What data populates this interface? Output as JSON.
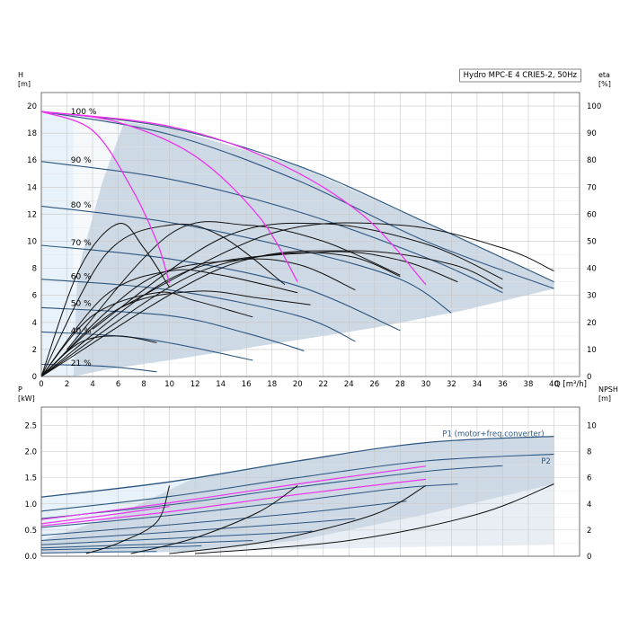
{
  "title": "Hydro MPC-E 4 CRIE5-2, 50Hz",
  "colors": {
    "envelope": "#cdd9e5",
    "light_region": "#e8f2fa",
    "curve_blue": "#2c5680",
    "magenta": "#ee33ee",
    "black": "#111111",
    "grid": "#c8c8c8"
  },
  "chart_data": [
    {
      "type": "line",
      "name": "head",
      "y_left_label": "H",
      "y_left_unit": "[m]",
      "y_right_label": "eta",
      "y_right_unit": "[%]",
      "x_label": "Q [m³/h]",
      "xlim": [
        0,
        42
      ],
      "ylim": [
        0,
        21
      ],
      "ylim_right": [
        0,
        105
      ],
      "x_ticks": [
        0,
        2,
        4,
        6,
        8,
        10,
        12,
        14,
        16,
        18,
        20,
        22,
        24,
        26,
        28,
        30,
        32,
        34,
        36,
        38,
        40
      ],
      "y_ticks": [
        0,
        2,
        4,
        6,
        8,
        10,
        12,
        14,
        16,
        18,
        20
      ],
      "y_right_ticks": [
        0,
        10,
        20,
        30,
        40,
        50,
        60,
        70,
        80,
        90,
        100
      ],
      "grid": true,
      "speed_labels": [
        {
          "text": "100 %",
          "x": 2.3,
          "y": 19.6
        },
        {
          "text": "90 %",
          "x": 2.3,
          "y": 16.0
        },
        {
          "text": "80 %",
          "x": 2.3,
          "y": 12.7
        },
        {
          "text": "70 %",
          "x": 2.3,
          "y": 9.9
        },
        {
          "text": "60 %",
          "x": 2.3,
          "y": 7.4
        },
        {
          "text": "50 %",
          "x": 2.3,
          "y": 5.4
        },
        {
          "text": "40 %",
          "x": 2.3,
          "y": 3.4
        },
        {
          "text": "21 %",
          "x": 2.3,
          "y": 1.0
        }
      ],
      "speed_curves": [
        {
          "speed": 100,
          "points": [
            [
              0,
              19.6
            ],
            [
              10,
              18.4
            ],
            [
              20,
              15.6
            ],
            [
              30,
              11.4
            ],
            [
              40,
              7.0
            ]
          ]
        },
        {
          "speed": 100,
          "points": [
            [
              0,
              19.6
            ],
            [
              10,
              17.9
            ],
            [
              20,
              14.5
            ],
            [
              30,
              10.0
            ],
            [
              40,
              6.5
            ]
          ]
        },
        {
          "speed": 90,
          "points": [
            [
              0,
              15.9
            ],
            [
              10,
              14.6
            ],
            [
              20,
              12.2
            ],
            [
              30,
              8.8
            ],
            [
              36,
              6.2
            ]
          ]
        },
        {
          "speed": 80,
          "points": [
            [
              0,
              12.6
            ],
            [
              10,
              11.4
            ],
            [
              20,
              9.4
            ],
            [
              28,
              7.2
            ],
            [
              32,
              4.7
            ]
          ]
        },
        {
          "speed": 70,
          "points": [
            [
              0,
              9.7
            ],
            [
              10,
              8.7
            ],
            [
              20,
              6.7
            ],
            [
              28,
              3.4
            ]
          ]
        },
        {
          "speed": 60,
          "points": [
            [
              0,
              7.2
            ],
            [
              10,
              6.4
            ],
            [
              20,
              4.5
            ],
            [
              24.5,
              2.6
            ]
          ]
        },
        {
          "speed": 50,
          "points": [
            [
              0,
              5.1
            ],
            [
              10,
              4.5
            ],
            [
              16,
              3.2
            ],
            [
              20.5,
              1.9
            ]
          ]
        },
        {
          "speed": 40,
          "points": [
            [
              0,
              3.3
            ],
            [
              8,
              2.8
            ],
            [
              16.5,
              1.2
            ]
          ]
        },
        {
          "speed": 21,
          "points": [
            [
              0,
              0.9
            ],
            [
              5,
              0.75
            ],
            [
              9,
              0.35
            ]
          ]
        }
      ],
      "magenta_curves": [
        {
          "points": [
            [
              0,
              19.6
            ],
            [
              4,
              18.2
            ],
            [
              7,
              14.0
            ],
            [
              9,
              10.0
            ],
            [
              10,
              6.9
            ]
          ]
        },
        {
          "points": [
            [
              0,
              19.6
            ],
            [
              6,
              18.8
            ],
            [
              12,
              16.3
            ],
            [
              17,
              11.8
            ],
            [
              20,
              7.0
            ]
          ]
        },
        {
          "points": [
            [
              0,
              19.6
            ],
            [
              10,
              18.5
            ],
            [
              18,
              16.0
            ],
            [
              25,
              12.0
            ],
            [
              30,
              6.8
            ]
          ]
        }
      ],
      "efficiency_curves": [
        {
          "points": [
            [
              0,
              0
            ],
            [
              3,
              8.0
            ],
            [
              6,
              11.3
            ],
            [
              8,
              9.5
            ],
            [
              10,
              6.6
            ]
          ]
        },
        {
          "points": [
            [
              0,
              0
            ],
            [
              5,
              9.0
            ],
            [
              10,
              11.2
            ],
            [
              14,
              10.4
            ],
            [
              19,
              6.8
            ]
          ]
        },
        {
          "points": [
            [
              2,
              2.0
            ],
            [
              10,
              10.5
            ],
            [
              16,
              11.2
            ],
            [
              22,
              10.0
            ],
            [
              28,
              7.5
            ]
          ]
        },
        {
          "points": [
            [
              4,
              3.5
            ],
            [
              14,
              10.2
            ],
            [
              22,
              11.3
            ],
            [
              30,
              9.8
            ],
            [
              36,
              7.2
            ]
          ]
        },
        {
          "points": [
            [
              6,
              5.0
            ],
            [
              18,
              10.6
            ],
            [
              28,
              11.2
            ],
            [
              36,
              9.5
            ],
            [
              40,
              7.8
            ]
          ]
        },
        {
          "points": [
            [
              0,
              0
            ],
            [
              4,
              4.5
            ],
            [
              9,
              6.2
            ],
            [
              12,
              5.6
            ],
            [
              16.5,
              4.4
            ]
          ]
        },
        {
          "points": [
            [
              0,
              0
            ],
            [
              6,
              5.0
            ],
            [
              12,
              6.3
            ],
            [
              17,
              5.8
            ],
            [
              21,
              5.3
            ]
          ]
        },
        {
          "points": [
            [
              0,
              0
            ],
            [
              5,
              6.0
            ],
            [
              10,
              7.8
            ],
            [
              14,
              7.5
            ],
            [
              20,
              6.2
            ]
          ]
        },
        {
          "points": [
            [
              0,
              0
            ],
            [
              8,
              7.0
            ],
            [
              15,
              8.6
            ],
            [
              20,
              8.3
            ],
            [
              24.5,
              6.4
            ]
          ]
        },
        {
          "points": [
            [
              0,
              0
            ],
            [
              10,
              7.2
            ],
            [
              18,
              9.0
            ],
            [
              24,
              8.9
            ],
            [
              28,
              7.4
            ]
          ]
        },
        {
          "points": [
            [
              0,
              0
            ],
            [
              12,
              7.6
            ],
            [
              22,
              9.2
            ],
            [
              28,
              8.6
            ],
            [
              32.5,
              7.0
            ]
          ]
        },
        {
          "points": [
            [
              0,
              0
            ],
            [
              14,
              8.0
            ],
            [
              24,
              9.3
            ],
            [
              32,
              8.3
            ],
            [
              36,
              6.5
            ]
          ]
        },
        {
          "points": [
            [
              0,
              0
            ],
            [
              3,
              2.5
            ],
            [
              6,
              3.0
            ],
            [
              9,
              2.5
            ]
          ]
        }
      ]
    },
    {
      "type": "line",
      "name": "power",
      "y_left_label": "P",
      "y_left_unit": "[kW]",
      "y_right_label": "NPSH",
      "y_right_unit": "[m]",
      "xlim": [
        0,
        42
      ],
      "ylim": [
        0,
        2.85
      ],
      "ylim_right": [
        0,
        11.4
      ],
      "y_ticks": [
        0.0,
        0.5,
        1.0,
        1.5,
        2.0,
        2.5
      ],
      "y_tick_labels": [
        "0.0",
        "0.5",
        "1.0",
        "1.5",
        "2.0",
        "2.5"
      ],
      "y_right_ticks": [
        0,
        2,
        4,
        6,
        8,
        10
      ],
      "grid": true,
      "series_labels": [
        {
          "text": "P1 (motor+freq.converter)",
          "x": 31.3,
          "y": 2.34
        },
        {
          "text": "P2",
          "x": 39.0,
          "y": 1.82
        }
      ],
      "p1_envelope": {
        "points": [
          [
            0,
            1.13
          ],
          [
            10,
            1.42
          ],
          [
            20,
            1.82
          ],
          [
            30,
            2.17
          ],
          [
            40,
            2.29
          ]
        ]
      },
      "p2_envelope": {
        "points": [
          [
            0,
            0.86
          ],
          [
            10,
            1.14
          ],
          [
            20,
            1.5
          ],
          [
            30,
            1.82
          ],
          [
            40,
            1.95
          ]
        ]
      },
      "power_curves": [
        {
          "points": [
            [
              0,
              0.72
            ],
            [
              10,
              0.98
            ],
            [
              20,
              1.32
            ],
            [
              30,
              1.62
            ],
            [
              36,
              1.73
            ]
          ]
        },
        {
          "points": [
            [
              0,
              0.55
            ],
            [
              10,
              0.78
            ],
            [
              20,
              1.06
            ],
            [
              28,
              1.3
            ],
            [
              32.5,
              1.38
            ]
          ]
        },
        {
          "points": [
            [
              0,
              0.4
            ],
            [
              10,
              0.6
            ],
            [
              20,
              0.82
            ],
            [
              28.5,
              1.05
            ]
          ]
        },
        {
          "points": [
            [
              0,
              0.3
            ],
            [
              10,
              0.46
            ],
            [
              20,
              0.63
            ],
            [
              24.5,
              0.72
            ]
          ]
        },
        {
          "points": [
            [
              0,
              0.22
            ],
            [
              10,
              0.34
            ],
            [
              20,
              0.46
            ],
            [
              21,
              0.48
            ]
          ]
        },
        {
          "points": [
            [
              0,
              0.16
            ],
            [
              10,
              0.24
            ],
            [
              16.5,
              0.3
            ]
          ]
        },
        {
          "points": [
            [
              0,
              0.12
            ],
            [
              10,
              0.18
            ],
            [
              12.5,
              0.2
            ]
          ]
        },
        {
          "points": [
            [
              0,
              0.06
            ],
            [
              5,
              0.08
            ],
            [
              9,
              0.09
            ]
          ]
        }
      ],
      "magenta_curves": [
        {
          "points": [
            [
              0,
              0.62
            ],
            [
              5,
              0.78
            ],
            [
              10,
              0.95
            ]
          ]
        },
        {
          "points": [
            [
              0,
              0.7
            ],
            [
              10,
              1.02
            ],
            [
              20,
              1.38
            ],
            [
              30,
              1.72
            ]
          ]
        },
        {
          "points": [
            [
              0,
              0.58
            ],
            [
              10,
              0.85
            ],
            [
              20,
              1.18
            ],
            [
              30,
              1.47
            ]
          ]
        }
      ],
      "npsh_curves": [
        {
          "points": [
            [
              3.5,
              0.05
            ],
            [
              6,
              0.25
            ],
            [
              9,
              0.65
            ],
            [
              10,
              1.35
            ]
          ]
        },
        {
          "points": [
            [
              7,
              0.05
            ],
            [
              12,
              0.35
            ],
            [
              17,
              0.85
            ],
            [
              20,
              1.35
            ]
          ]
        },
        {
          "points": [
            [
              10,
              0.05
            ],
            [
              18,
              0.3
            ],
            [
              26,
              0.8
            ],
            [
              30,
              1.35
            ]
          ]
        },
        {
          "points": [
            [
              12,
              0.05
            ],
            [
              24,
              0.3
            ],
            [
              34,
              0.8
            ],
            [
              40,
              1.38
            ]
          ]
        }
      ]
    }
  ]
}
